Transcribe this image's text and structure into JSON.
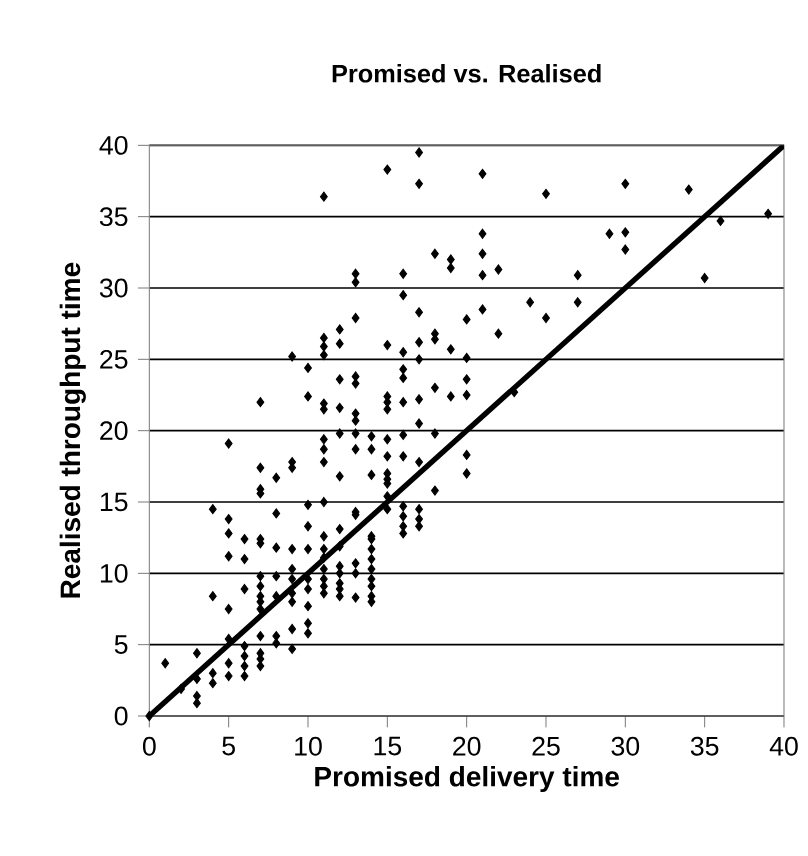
{
  "chart_data": {
    "type": "scatter",
    "title": "Promised vs. Realised",
    "xlabel": "Promised delivery time",
    "ylabel": "Realised throughput time",
    "xlim": [
      0,
      40
    ],
    "ylim": [
      0,
      40
    ],
    "xticks": [
      0,
      5,
      10,
      15,
      20,
      25,
      30,
      35,
      40
    ],
    "yticks": [
      0,
      5,
      10,
      15,
      20,
      25,
      30,
      35,
      40
    ],
    "grid": "y",
    "marker": "diamond",
    "series": [
      {
        "color": "#000000",
        "x": [
          17,
          15,
          17,
          11,
          18,
          19,
          19,
          13,
          13,
          16,
          16,
          13,
          12,
          11,
          11,
          11,
          12,
          9,
          17,
          18,
          18,
          19,
          15,
          16,
          17,
          20,
          10,
          16,
          16,
          17,
          20,
          12,
          13,
          13,
          7,
          10,
          11,
          11,
          12,
          13,
          13,
          15,
          15,
          15,
          16,
          17,
          18,
          19,
          20,
          20,
          21,
          25,
          30,
          34,
          39,
          36,
          29,
          30,
          30,
          21,
          21,
          21,
          22,
          27,
          35,
          27,
          24,
          25,
          21,
          22,
          23,
          20,
          20,
          17,
          18,
          12,
          13,
          14,
          15,
          16,
          11,
          11,
          11,
          13,
          14,
          15,
          16,
          7,
          7,
          7,
          8,
          9,
          9,
          5,
          12,
          14,
          15,
          15,
          15,
          17,
          18,
          4,
          5,
          5,
          5,
          6,
          7,
          7,
          8,
          8,
          9,
          10,
          11,
          10,
          10,
          11,
          12,
          13,
          13,
          15,
          15,
          16,
          16,
          16,
          16,
          17,
          17,
          17,
          14,
          14,
          11,
          11,
          12,
          12,
          12,
          12,
          12,
          12,
          13,
          13,
          14,
          14,
          14,
          14,
          14,
          14,
          14,
          13,
          11,
          11,
          11,
          11,
          10,
          10,
          9,
          9,
          9,
          9,
          8,
          8,
          7,
          7,
          7,
          7,
          7,
          6,
          6,
          4,
          5,
          10,
          10,
          10,
          9,
          8,
          8,
          9,
          7,
          7,
          7,
          7,
          6,
          6,
          6,
          6,
          5,
          5,
          5,
          4,
          4,
          3,
          3,
          3,
          3,
          2,
          1,
          0
        ],
        "values": [
          39.5,
          38.3,
          37.3,
          36.4,
          32.4,
          32,
          31.4,
          31,
          30.4,
          31,
          29.5,
          27.9,
          27.1,
          26.5,
          25.9,
          25.3,
          26.1,
          25.2,
          28.3,
          26.8,
          26.4,
          25.7,
          26,
          25.5,
          26.2,
          27.8,
          24.4,
          24.3,
          23.7,
          25,
          25.1,
          23.6,
          23.8,
          23.3,
          22,
          22.4,
          21.9,
          21.5,
          21.6,
          21.2,
          20.7,
          22.4,
          22,
          21.5,
          22,
          22.2,
          23,
          22.4,
          23.6,
          22.5,
          38,
          36.6,
          37.3,
          36.9,
          35.2,
          34.7,
          33.8,
          33.9,
          32.7,
          33.8,
          32.4,
          30.9,
          31.3,
          30.9,
          30.7,
          29,
          29,
          27.9,
          28.5,
          26.8,
          22.7,
          18.3,
          17,
          20.5,
          19.8,
          19.8,
          19.8,
          19.6,
          19.4,
          19.7,
          19.4,
          18.7,
          17.8,
          18.7,
          18.7,
          18.2,
          18.2,
          17.4,
          15.9,
          15.6,
          16.7,
          17.8,
          17.4,
          19.1,
          16.8,
          16.9,
          17,
          16.6,
          16.3,
          17.8,
          15.8,
          14.5,
          13.8,
          12.8,
          11.2,
          12.4,
          12.4,
          12.1,
          14.2,
          11.8,
          11.7,
          14.8,
          15,
          13.3,
          11.7,
          12.6,
          13.1,
          14.3,
          14.1,
          15.4,
          14.5,
          14.7,
          14,
          13.3,
          12.8,
          14.5,
          13.8,
          13.3,
          12.6,
          12.4,
          11.7,
          11.1,
          11.9,
          10.5,
          10,
          9.3,
          8.9,
          8.4,
          10.7,
          10,
          11.7,
          11,
          10.3,
          9.6,
          9.1,
          8.4,
          8,
          8.3,
          10.3,
          9.6,
          9.1,
          8.6,
          9.6,
          8.9,
          10.3,
          9.6,
          8.6,
          8,
          9.8,
          8.4,
          9.8,
          9.1,
          8.4,
          8,
          7.5,
          11,
          8.9,
          8.4,
          7.5,
          7.7,
          6.5,
          5.8,
          6.1,
          5.6,
          5.1,
          4.7,
          5.6,
          4.4,
          4,
          3.5,
          4.9,
          4.2,
          3.5,
          2.8,
          5.4,
          3.7,
          2.8,
          3,
          2.3,
          4.4,
          2.6,
          1.4,
          0.9,
          1.9,
          3.7,
          0
        ]
      },
      {
        "type": "line",
        "color": "#000000",
        "marker": "none",
        "x": [
          0,
          40
        ],
        "values": [
          0,
          40
        ]
      }
    ]
  }
}
